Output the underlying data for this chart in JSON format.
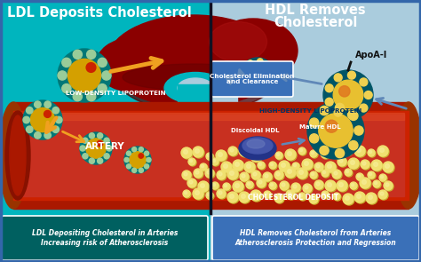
{
  "left_bg": "#00b5be",
  "right_bg": "#aaccdd",
  "left_title": "LDL Deposits Cholesterol",
  "right_title_1": "HDL Removes",
  "right_title_2": "Cholesterol",
  "left_label": "LOW-DENSITY LIPOPROTEIN",
  "right_label": "HIGH-DENSITY LIPOPROTEIN",
  "apoa_label": "ApoA-I",
  "artery_label": "ARTERY",
  "cholesterol_deposit_label": "CHOLESTEROL DEPOSIT",
  "discoidal_label": "Discoidal HDL",
  "mature_label": "Mature HDL",
  "elim_label": "Cholesterol Elimination\nand Clearance",
  "bottom_left_label": "LDL Depositing Cholesterol in Arteries\nIncreasing risk of Atherosclerosis",
  "bottom_right_label": "HDL Removes Cholesterol from Arteries\nAtherosclerosis Protection and Regression",
  "liver_dark": "#6b0000",
  "liver_mid": "#8b0000",
  "liver_light": "#aa1111",
  "liver_shadow": "#550000",
  "artery_outer": "#aa1800",
  "artery_mid": "#cc2200",
  "artery_inner": "#dd3311",
  "artery_lumen": "#c83020",
  "cholesterol_color": "#f0e070",
  "cholesterol_shadow": "#c8b030",
  "ldl_shell": "#007777",
  "ldl_core": "#d4a000",
  "ldl_dot": "#99cc99",
  "ldl_red": "#cc2200",
  "hdl_shell": "#005566",
  "hdl_core": "#e8c030",
  "hdl_dot": "#f0d050",
  "hdl_orange": "#e07820",
  "arrow_orange": "#f0a020",
  "arrow_blue": "#6088b8",
  "divider_color": "#111122",
  "bottom_left_bg": "#006060",
  "bottom_right_bg": "#3a70b8",
  "elim_box_bg": "#3a70b8",
  "border_color": "#3366aa",
  "white": "#ffffff",
  "dark_text": "#003366"
}
